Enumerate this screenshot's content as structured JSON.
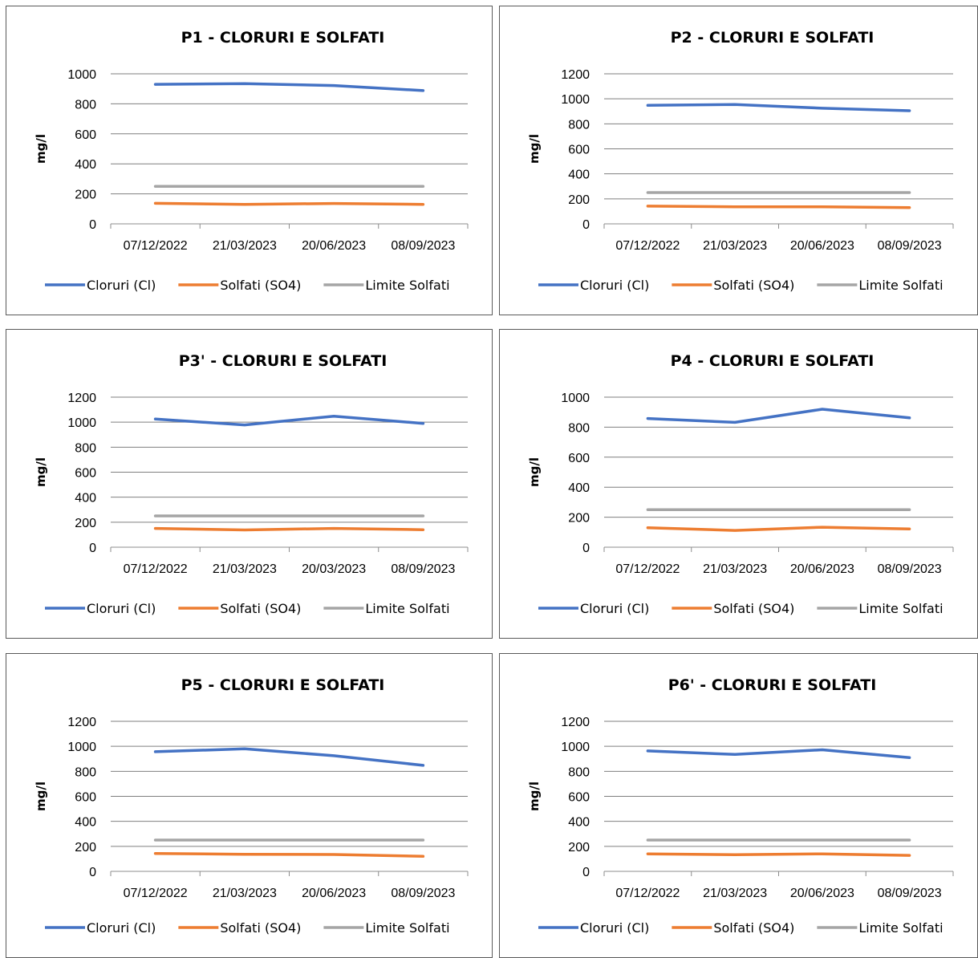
{
  "colors": {
    "cloruri": "#4472C4",
    "solfati": "#ED7D31",
    "limite": "#A5A5A5"
  },
  "chart_data": [
    {
      "type": "line",
      "title": "P1 - CLORURI E SOLFATI",
      "ylabel": "mg/l",
      "xlabel": "",
      "categories": [
        "07/12/2022",
        "21/03/2023",
        "20/06/2023",
        "08/09/2023"
      ],
      "ylim": [
        0,
        1000
      ],
      "yticks": [
        0,
        200,
        400,
        600,
        800,
        1000
      ],
      "grid": true,
      "legend": "bottom",
      "series": [
        {
          "name": "Cloruri (Cl)",
          "values": [
            930,
            935,
            922,
            888
          ]
        },
        {
          "name": "Solfati (SO4)",
          "values": [
            137,
            130,
            136,
            130
          ]
        },
        {
          "name": "Limite Solfati",
          "values": [
            250,
            250,
            250,
            250
          ]
        }
      ]
    },
    {
      "type": "line",
      "title": "P2 - CLORURI E SOLFATI",
      "ylabel": "mg/l",
      "xlabel": "",
      "categories": [
        "07/12/2022",
        "21/03/2023",
        "20/06/2023",
        "08/09/2023"
      ],
      "ylim": [
        0,
        1200
      ],
      "yticks": [
        0,
        200,
        400,
        600,
        800,
        1000,
        1200
      ],
      "grid": true,
      "legend": "bottom",
      "series": [
        {
          "name": "Cloruri (Cl)",
          "values": [
            948,
            955,
            925,
            905
          ]
        },
        {
          "name": "Solfati (SO4)",
          "values": [
            142,
            137,
            137,
            130
          ]
        },
        {
          "name": "Limite Solfati",
          "values": [
            250,
            250,
            250,
            250
          ]
        }
      ]
    },
    {
      "type": "line",
      "title": "P3' - CLORURI E SOLFATI",
      "ylabel": "mg/l",
      "xlabel": "",
      "categories": [
        "07/12/2022",
        "21/03/2023",
        "20/03/2023",
        "08/09/2023"
      ],
      "ylim": [
        0,
        1200
      ],
      "yticks": [
        0,
        200,
        400,
        600,
        800,
        1000,
        1200
      ],
      "grid": true,
      "legend": "bottom",
      "series": [
        {
          "name": "Cloruri (Cl)",
          "values": [
            1025,
            978,
            1048,
            990
          ]
        },
        {
          "name": "Solfati (SO4)",
          "values": [
            150,
            138,
            150,
            140
          ]
        },
        {
          "name": "Limite Solfati",
          "values": [
            250,
            250,
            250,
            250
          ]
        }
      ]
    },
    {
      "type": "line",
      "title": "P4 - CLORURI E SOLFATI",
      "ylabel": "mg/l",
      "xlabel": "",
      "categories": [
        "07/12/2022",
        "21/03/2023",
        "20/06/2023",
        "08/09/2023"
      ],
      "ylim": [
        0,
        1000
      ],
      "yticks": [
        0,
        200,
        400,
        600,
        800,
        1000
      ],
      "grid": true,
      "legend": "bottom",
      "series": [
        {
          "name": "Cloruri (Cl)",
          "values": [
            858,
            832,
            920,
            862
          ]
        },
        {
          "name": "Solfati (SO4)",
          "values": [
            130,
            112,
            133,
            122
          ]
        },
        {
          "name": "Limite Solfati",
          "values": [
            250,
            250,
            250,
            250
          ]
        }
      ]
    },
    {
      "type": "line",
      "title": "P5 - CLORURI E SOLFATI",
      "ylabel": "mg/l",
      "xlabel": "",
      "categories": [
        "07/12/2022",
        "21/03/2023",
        "20/06/2023",
        "08/09/2023"
      ],
      "ylim": [
        0,
        1200
      ],
      "yticks": [
        0,
        200,
        400,
        600,
        800,
        1000,
        1200
      ],
      "grid": true,
      "legend": "bottom",
      "series": [
        {
          "name": "Cloruri (Cl)",
          "values": [
            957,
            980,
            925,
            848
          ]
        },
        {
          "name": "Solfati (SO4)",
          "values": [
            143,
            137,
            135,
            120
          ]
        },
        {
          "name": "Limite Solfati",
          "values": [
            250,
            250,
            250,
            250
          ]
        }
      ]
    },
    {
      "type": "line",
      "title": "P6' - CLORURI E SOLFATI",
      "ylabel": "mg/l",
      "xlabel": "",
      "categories": [
        "07/12/2022",
        "21/03/2023",
        "20/06/2023",
        "08/09/2023"
      ],
      "ylim": [
        0,
        1200
      ],
      "yticks": [
        0,
        200,
        400,
        600,
        800,
        1000,
        1200
      ],
      "grid": true,
      "legend": "bottom",
      "series": [
        {
          "name": "Cloruri (Cl)",
          "values": [
            963,
            935,
            972,
            910
          ]
        },
        {
          "name": "Solfati (SO4)",
          "values": [
            140,
            133,
            140,
            128
          ]
        },
        {
          "name": "Limite Solfati",
          "values": [
            250,
            250,
            250,
            250
          ]
        }
      ]
    }
  ]
}
